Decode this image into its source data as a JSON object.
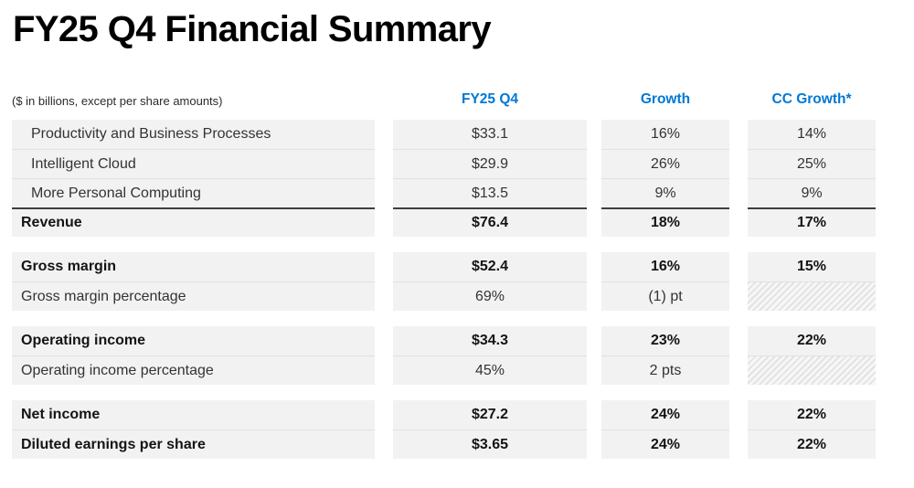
{
  "title": "FY25 Q4 Financial Summary",
  "chart_data": {
    "type": "table",
    "title": "FY25 Q4 Financial Summary",
    "note": "($ in billions, except per share amounts)",
    "columns": [
      "FY25 Q4",
      "Growth",
      "CC Growth*"
    ],
    "sections": [
      {
        "name": "revenue",
        "rows": [
          {
            "label": "Productivity and Business Processes",
            "fy25_q4": "$33.1",
            "growth": "16%",
            "cc_growth": "14%",
            "bold": false,
            "indent": true,
            "top_rule": false,
            "cc_hatched": false
          },
          {
            "label": "Intelligent Cloud",
            "fy25_q4": "$29.9",
            "growth": "26%",
            "cc_growth": "25%",
            "bold": false,
            "indent": true,
            "top_rule": false,
            "cc_hatched": false
          },
          {
            "label": "More Personal Computing",
            "fy25_q4": "$13.5",
            "growth": "9%",
            "cc_growth": "9%",
            "bold": false,
            "indent": true,
            "top_rule": false,
            "cc_hatched": false
          },
          {
            "label": "Revenue",
            "fy25_q4": "$76.4",
            "growth": "18%",
            "cc_growth": "17%",
            "bold": true,
            "indent": false,
            "top_rule": true,
            "cc_hatched": false
          }
        ]
      },
      {
        "name": "gross-margin",
        "rows": [
          {
            "label": "Gross margin",
            "fy25_q4": "$52.4",
            "growth": "16%",
            "cc_growth": "15%",
            "bold": true,
            "indent": false,
            "top_rule": false,
            "cc_hatched": false
          },
          {
            "label": "Gross margin percentage",
            "fy25_q4": "69%",
            "growth": "(1) pt",
            "cc_growth": "",
            "bold": false,
            "indent": false,
            "top_rule": false,
            "cc_hatched": true
          }
        ]
      },
      {
        "name": "operating-income",
        "rows": [
          {
            "label": "Operating income",
            "fy25_q4": "$34.3",
            "growth": "23%",
            "cc_growth": "22%",
            "bold": true,
            "indent": false,
            "top_rule": false,
            "cc_hatched": false
          },
          {
            "label": "Operating income percentage",
            "fy25_q4": "45%",
            "growth": "2 pts",
            "cc_growth": "",
            "bold": false,
            "indent": false,
            "top_rule": false,
            "cc_hatched": true
          }
        ]
      },
      {
        "name": "net-income",
        "rows": [
          {
            "label": "Net income",
            "fy25_q4": "$27.2",
            "growth": "24%",
            "cc_growth": "22%",
            "bold": true,
            "indent": false,
            "top_rule": false,
            "cc_hatched": false
          },
          {
            "label": "Diluted earnings per share",
            "fy25_q4": "$3.65",
            "growth": "24%",
            "cc_growth": "22%",
            "bold": true,
            "indent": false,
            "top_rule": false,
            "cc_hatched": false
          }
        ]
      }
    ],
    "colors": {
      "accent_blue": "#0078D4",
      "row_background": "#F2F2F2",
      "row_separator": "#E1E1E1",
      "subtotal_rule": "#3F3F3F",
      "text_bold": "#141414",
      "text_regular": "#333333",
      "hatch_stripe": "#E3E3E3",
      "hatch_base": "#F7F7F7"
    }
  }
}
